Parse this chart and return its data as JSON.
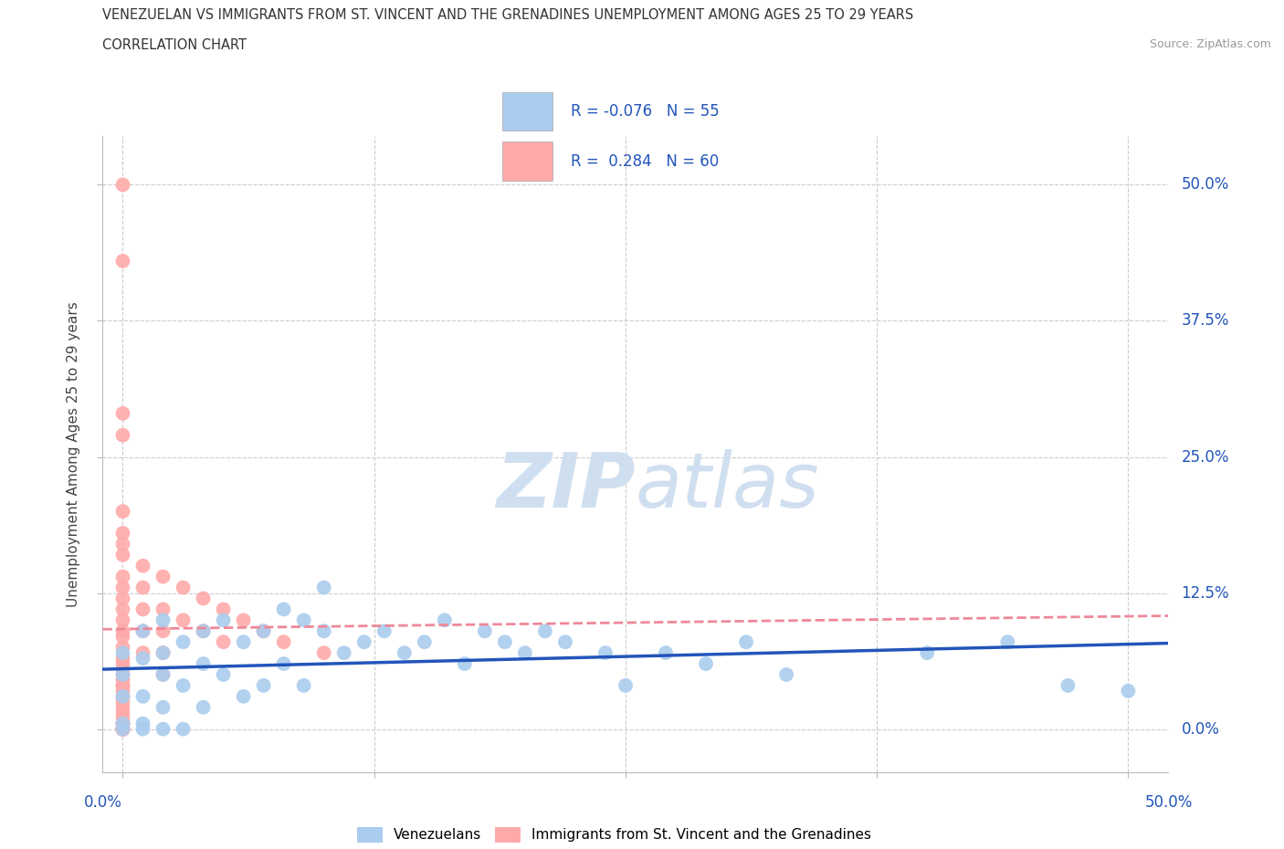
{
  "title_line1": "VENEZUELAN VS IMMIGRANTS FROM ST. VINCENT AND THE GRENADINES UNEMPLOYMENT AMONG AGES 25 TO 29 YEARS",
  "title_line2": "CORRELATION CHART",
  "source": "Source: ZipAtlas.com",
  "xlabel_ticks_left": "0.0%",
  "xlabel_ticks_right": "50.0%",
  "xlabel_tick_vals": [
    0.0,
    0.125,
    0.25,
    0.375,
    0.5
  ],
  "ylabel_tick_vals": [
    0.0,
    0.125,
    0.25,
    0.375,
    0.5
  ],
  "ylabel_tick_labels": [
    "0.0%",
    "12.5%",
    "25.0%",
    "37.5%",
    "50.0%"
  ],
  "ylabel": "Unemployment Among Ages 25 to 29 years",
  "xlim": [
    -0.01,
    0.52
  ],
  "ylim": [
    -0.04,
    0.545
  ],
  "blue_color": "#AACCEE",
  "pink_color": "#FFAAAA",
  "blue_line_color": "#2255BB",
  "pink_line_color": "#EE8899",
  "R_blue": -0.076,
  "N_blue": 55,
  "R_pink": 0.284,
  "N_pink": 60,
  "legend_label_blue": "Venezuelans",
  "legend_label_pink": "Immigrants from St. Vincent and the Grenadines",
  "watermark_zip": "ZIP",
  "watermark_atlas": "atlas",
  "watermark_color_zip": "#CCDDEE",
  "watermark_color_atlas": "#CCDDEE",
  "grid_color": "#CCCCCC",
  "background_color": "#FFFFFF",
  "stat_text_color": "#2255BB",
  "blue_scatter_x": [
    0.0,
    0.0,
    0.0,
    0.0,
    0.0,
    0.01,
    0.01,
    0.01,
    0.01,
    0.01,
    0.02,
    0.02,
    0.02,
    0.02,
    0.02,
    0.03,
    0.03,
    0.03,
    0.04,
    0.04,
    0.04,
    0.05,
    0.05,
    0.06,
    0.06,
    0.07,
    0.07,
    0.08,
    0.08,
    0.09,
    0.09,
    0.1,
    0.1,
    0.11,
    0.12,
    0.13,
    0.14,
    0.15,
    0.16,
    0.17,
    0.18,
    0.19,
    0.2,
    0.21,
    0.22,
    0.24,
    0.25,
    0.27,
    0.29,
    0.31,
    0.33,
    0.4,
    0.44,
    0.47,
    0.5
  ],
  "blue_scatter_y": [
    0.07,
    0.05,
    0.03,
    0.005,
    0.0,
    0.09,
    0.065,
    0.03,
    0.005,
    0.0,
    0.1,
    0.07,
    0.05,
    0.02,
    0.0,
    0.08,
    0.04,
    0.0,
    0.09,
    0.06,
    0.02,
    0.1,
    0.05,
    0.08,
    0.03,
    0.09,
    0.04,
    0.11,
    0.06,
    0.1,
    0.04,
    0.09,
    0.13,
    0.07,
    0.08,
    0.09,
    0.07,
    0.08,
    0.1,
    0.06,
    0.09,
    0.08,
    0.07,
    0.09,
    0.08,
    0.07,
    0.04,
    0.07,
    0.06,
    0.08,
    0.05,
    0.07,
    0.08,
    0.04,
    0.035
  ],
  "pink_scatter_x": [
    0.0,
    0.0,
    0.0,
    0.0,
    0.0,
    0.0,
    0.0,
    0.0,
    0.0,
    0.0,
    0.0,
    0.0,
    0.0,
    0.0,
    0.0,
    0.0,
    0.0,
    0.0,
    0.0,
    0.0,
    0.0,
    0.0,
    0.0,
    0.0,
    0.0,
    0.0,
    0.0,
    0.0,
    0.0,
    0.0,
    0.0,
    0.0,
    0.0,
    0.0,
    0.0,
    0.0,
    0.0,
    0.0,
    0.0,
    0.0,
    0.01,
    0.01,
    0.01,
    0.01,
    0.01,
    0.02,
    0.02,
    0.02,
    0.02,
    0.02,
    0.03,
    0.03,
    0.04,
    0.04,
    0.05,
    0.05,
    0.06,
    0.07,
    0.08,
    0.1
  ],
  "pink_scatter_y": [
    0.5,
    0.43,
    0.29,
    0.27,
    0.2,
    0.18,
    0.17,
    0.16,
    0.14,
    0.13,
    0.12,
    0.11,
    0.1,
    0.09,
    0.085,
    0.075,
    0.065,
    0.06,
    0.055,
    0.05,
    0.045,
    0.04,
    0.04,
    0.035,
    0.03,
    0.025,
    0.02,
    0.015,
    0.01,
    0.005,
    0.005,
    0.0,
    0.0,
    0.0,
    0.0,
    0.0,
    0.0,
    0.0,
    0.0,
    0.0,
    0.15,
    0.13,
    0.11,
    0.09,
    0.07,
    0.14,
    0.11,
    0.09,
    0.07,
    0.05,
    0.13,
    0.1,
    0.12,
    0.09,
    0.11,
    0.08,
    0.1,
    0.09,
    0.08,
    0.07
  ]
}
